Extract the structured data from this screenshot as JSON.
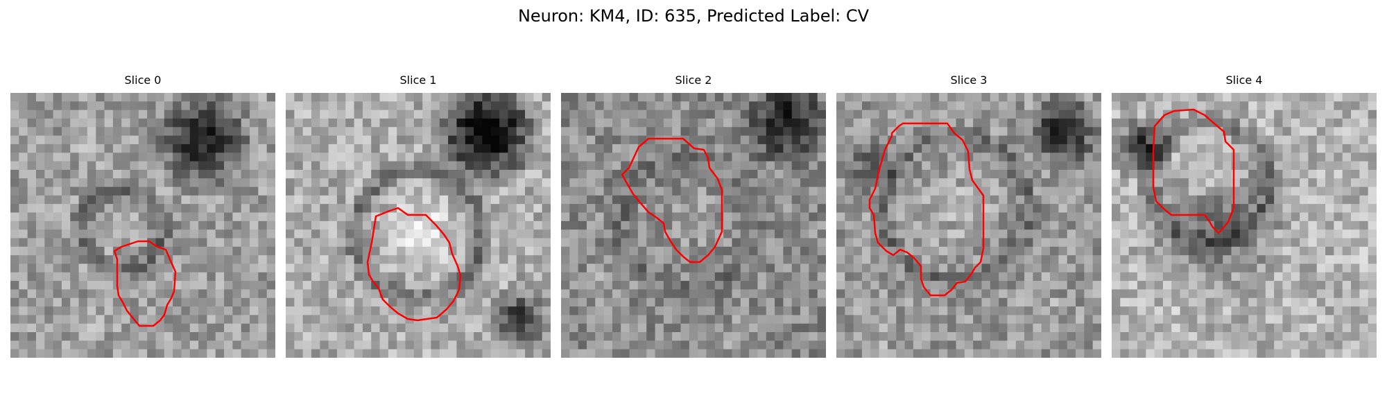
{
  "figure": {
    "title": "Neuron: KM4, ID: 635, Predicted Label: CV"
  },
  "outline_color": "#ff0000",
  "panels": [
    {
      "title": "Slice 0"
    },
    {
      "title": "Slice 1"
    },
    {
      "title": "Slice 2"
    },
    {
      "title": "Slice 3"
    },
    {
      "title": "Slice 4"
    }
  ]
}
